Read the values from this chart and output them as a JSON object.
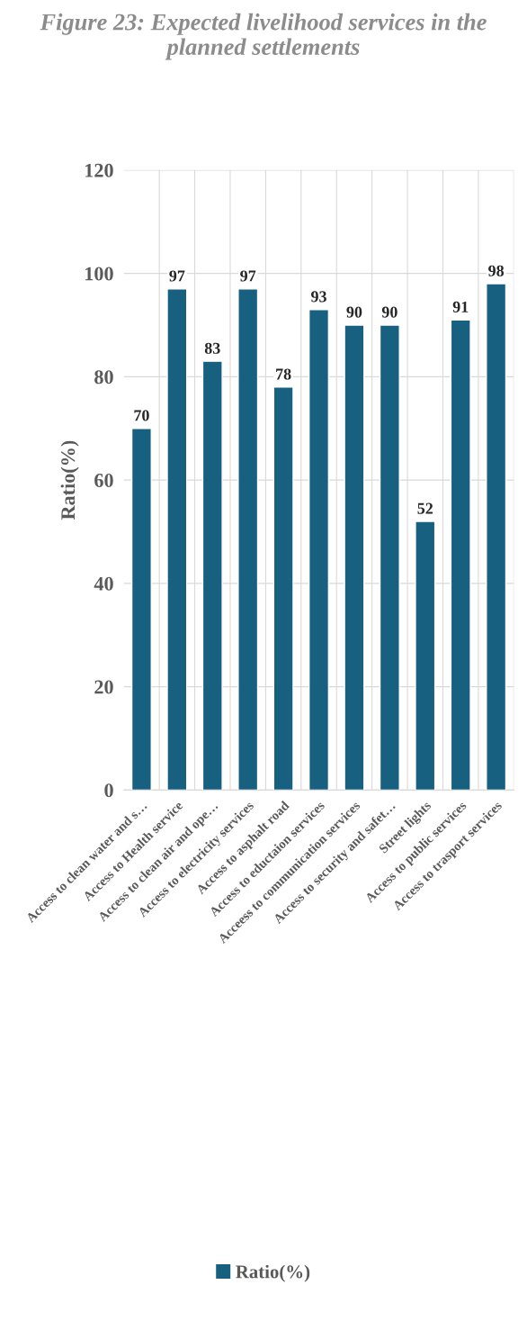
{
  "chart_data": {
    "type": "bar",
    "title": "Figure 23: Expected livelihood services in the planned settlements",
    "ylabel": "Ratio(%)",
    "categories": [
      "Access to clean water and s…",
      "Access to Health service",
      "Access to clean air and ope…",
      "Access to electricity services",
      "Access to asphalt road",
      "Access to eductaion services",
      "Acceess to communication services",
      "Access to security and safet…",
      "Street lights",
      "Access to public services",
      "Access to trasport services"
    ],
    "series": [
      {
        "name": "Ratio(%)",
        "color": "#17607f",
        "values": [
          70,
          97,
          83,
          97,
          78,
          93,
          90,
          90,
          52,
          91,
          98
        ]
      }
    ],
    "ylim": [
      0,
      120
    ],
    "yticks": [
      0,
      20,
      40,
      60,
      80,
      100,
      120
    ],
    "grid": true,
    "legend": "bottom",
    "data_labels": true
  }
}
